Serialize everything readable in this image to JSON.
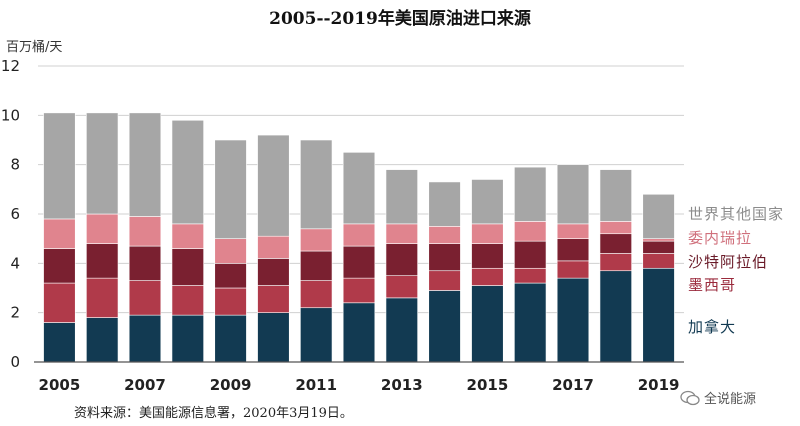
{
  "chart_data": {
    "type": "bar",
    "stacked": true,
    "title": "2005--2019年美国原油进口来源",
    "ylabel": "百万桶/天",
    "xlabel": "",
    "ylim": [
      0,
      12
    ],
    "yticks": [
      0,
      2,
      4,
      6,
      8,
      10,
      12
    ],
    "grid": true,
    "legend_position": "right",
    "categories": [
      "2005",
      "2006",
      "2007",
      "2008",
      "2009",
      "2010",
      "2011",
      "2012",
      "2013",
      "2014",
      "2015",
      "2016",
      "2017",
      "2018",
      "2019"
    ],
    "xtick_labels": [
      "2005",
      "",
      "2007",
      "",
      "2009",
      "",
      "2011",
      "",
      "2013",
      "",
      "2015",
      "",
      "2017",
      "",
      "2019"
    ],
    "series": [
      {
        "name": "加拿大",
        "color": "#123a52",
        "values": [
          1.6,
          1.8,
          1.9,
          1.9,
          1.9,
          2.0,
          2.2,
          2.4,
          2.6,
          2.9,
          3.1,
          3.2,
          3.4,
          3.7,
          3.8
        ]
      },
      {
        "name": "墨西哥",
        "color": "#b03a4a",
        "values": [
          1.6,
          1.6,
          1.4,
          1.2,
          1.1,
          1.1,
          1.1,
          1.0,
          0.9,
          0.8,
          0.7,
          0.6,
          0.7,
          0.7,
          0.6
        ]
      },
      {
        "name": "沙特阿拉伯",
        "color": "#7a2030",
        "values": [
          1.4,
          1.4,
          1.4,
          1.5,
          1.0,
          1.1,
          1.2,
          1.3,
          1.3,
          1.1,
          1.0,
          1.1,
          0.9,
          0.8,
          0.5
        ]
      },
      {
        "name": "委内瑞拉",
        "color": "#e0848e",
        "values": [
          1.2,
          1.2,
          1.2,
          1.0,
          1.0,
          0.9,
          0.9,
          0.9,
          0.8,
          0.7,
          0.8,
          0.8,
          0.6,
          0.5,
          0.1
        ]
      },
      {
        "name": "世界其他国家",
        "color": "#a6a6a6",
        "values": [
          4.3,
          4.1,
          4.2,
          4.2,
          4.0,
          4.1,
          3.6,
          2.9,
          2.2,
          1.8,
          1.8,
          2.2,
          2.4,
          2.1,
          1.8
        ]
      }
    ]
  },
  "legend": [
    {
      "label": "世界其他国家",
      "color": "#8c8c8c"
    },
    {
      "label": "委内瑞拉",
      "color": "#d0707c"
    },
    {
      "label": "沙特阿拉伯",
      "color": "#6a1a28"
    },
    {
      "label": "墨西哥",
      "color": "#9a2a3c"
    },
    {
      "label": "加拿大",
      "color": "#123a52"
    }
  ],
  "source_note": "资料来源：美国能源信息署，2020年3月19日。",
  "watermark": "全说能源"
}
